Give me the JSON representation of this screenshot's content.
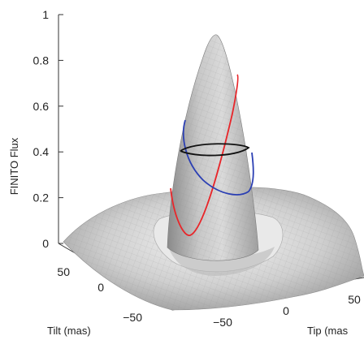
{
  "chart_data": {
    "type": "surface3d",
    "title": "",
    "zlabel": "FINITO Flux",
    "xlabel": "Tilt (mas)",
    "ylabel": "Tip (mas",
    "zlim": [
      0,
      1
    ],
    "z_ticks": [
      "0",
      "0.2",
      "0.4",
      "0.6",
      "0.8",
      "1"
    ],
    "tilt_ticks": [
      "50",
      "0",
      "−50"
    ],
    "tip_ticks": [
      "−50",
      "0",
      "50"
    ],
    "tilt_range": [
      -80,
      80
    ],
    "tip_range": [
      -80,
      80
    ],
    "peak_flux": 0.92,
    "curves": [
      {
        "color": "#e8262a",
        "description": "tilted ellipse"
      },
      {
        "color": "#2b3fb3",
        "description": "tilted ellipse"
      },
      {
        "color": "#111111",
        "level": 0.43
      }
    ],
    "surface_color": "#c9c9c9"
  }
}
